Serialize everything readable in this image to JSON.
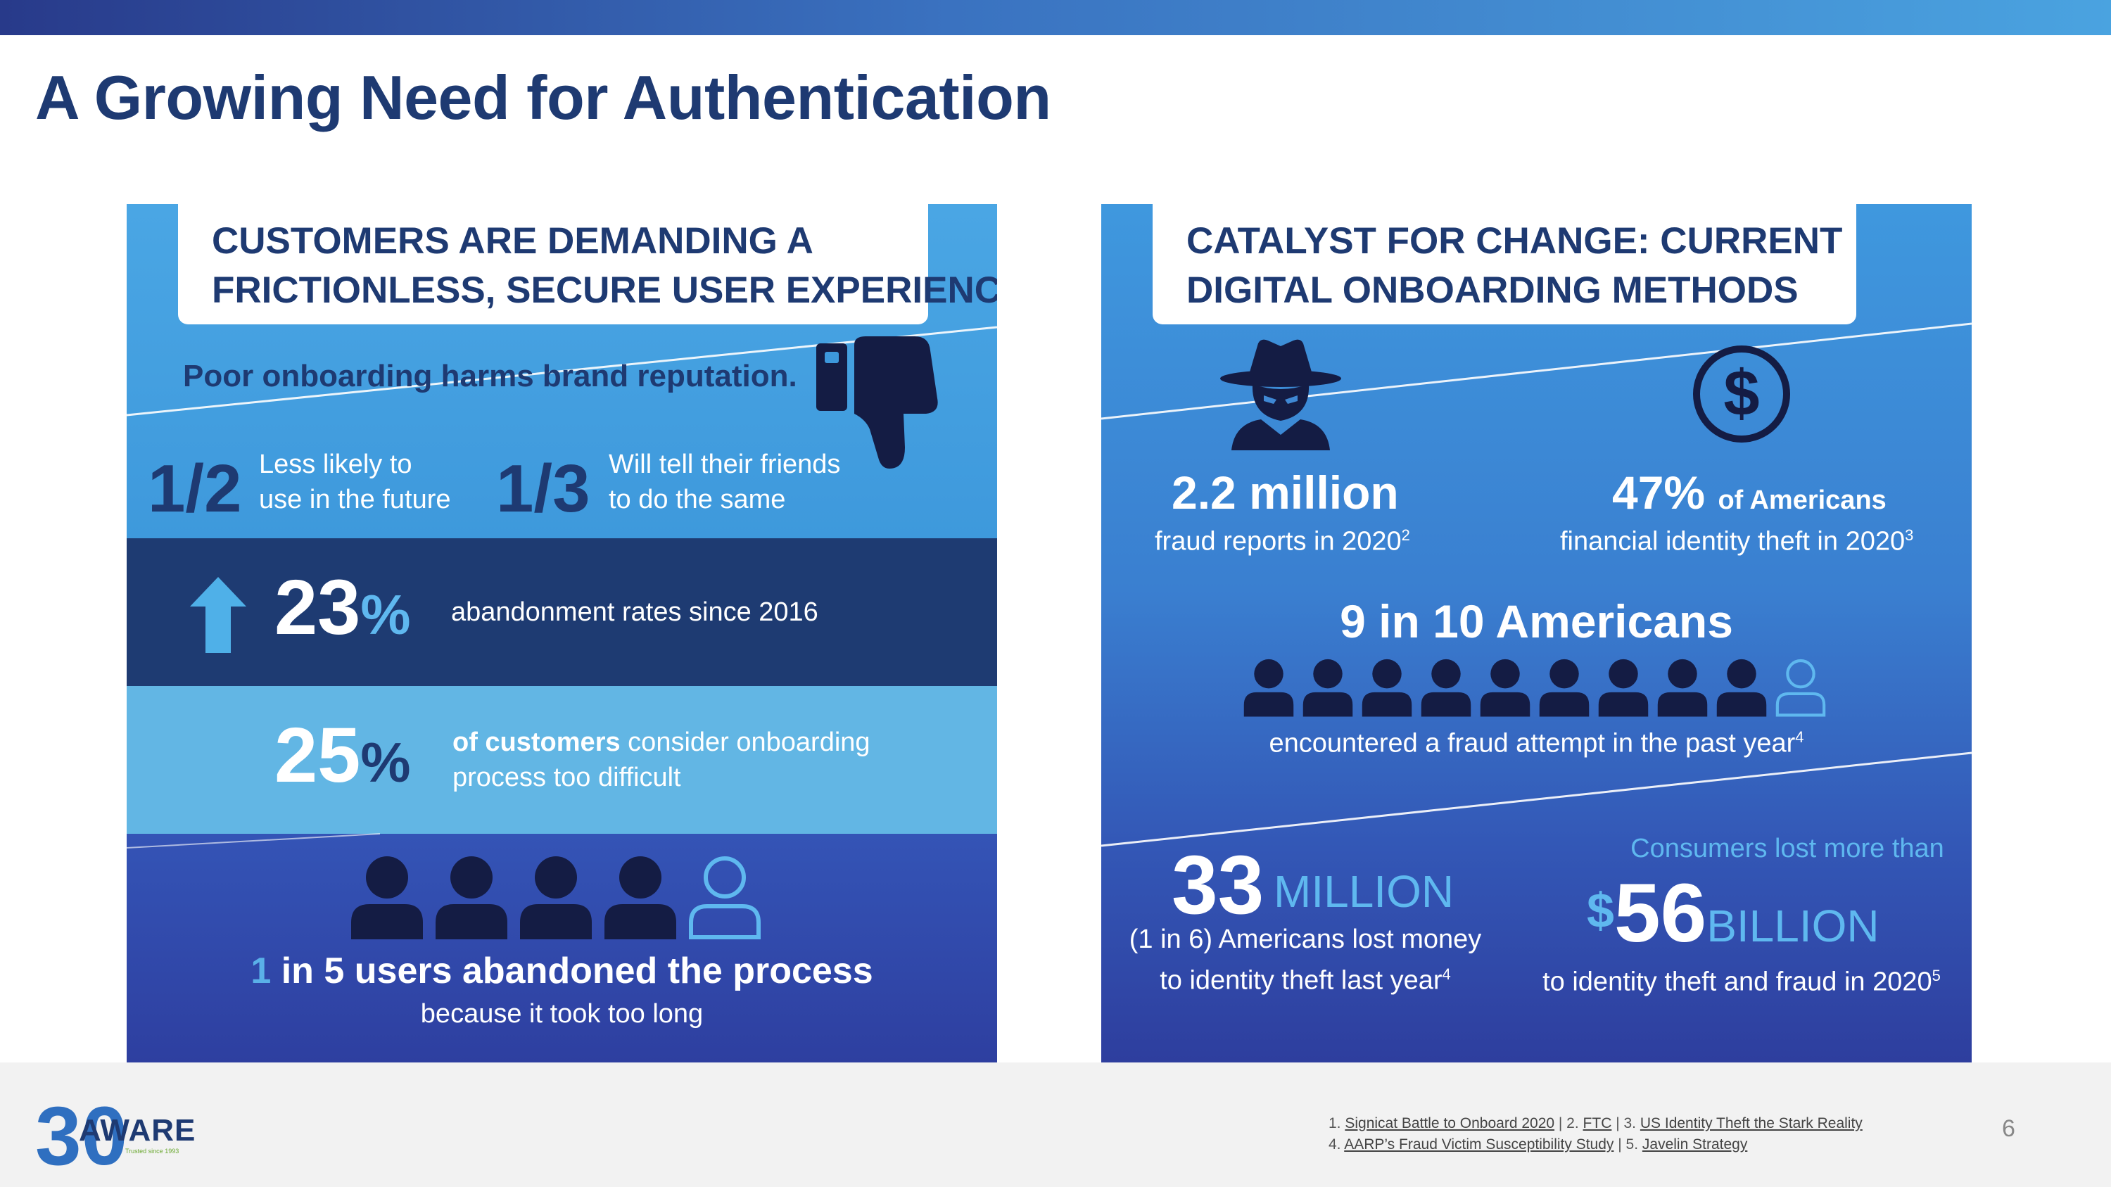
{
  "page_title": "A Growing Need for Authentication",
  "left_panel": {
    "header_line1": "CUSTOMERS ARE DEMANDING A",
    "header_line2": "FRICTIONLESS, SECURE USER EXPERIENCE",
    "poor_onboarding": "Poor onboarding harms brand reputation.",
    "stat_half": {
      "value": "1/2",
      "line1": "Less likely to",
      "line2": "use in the future"
    },
    "stat_third": {
      "value": "1/3",
      "line1": "Will tell their friends",
      "line2": "to do the same"
    },
    "abandonment": {
      "value": "23",
      "unit": "%",
      "text": "abandonment rates since 2016"
    },
    "difficult": {
      "value": "25",
      "unit": "%",
      "bold": "of customers",
      "text1_rest": " consider onboarding",
      "text2": "process too difficult"
    },
    "users": {
      "highlight": "1",
      "rest": " in 5 users abandoned the process",
      "sub": "because it took too long"
    }
  },
  "right_panel": {
    "header_line1": "CATALYST FOR CHANGE: CURRENT",
    "header_line2": "DIGITAL ONBOARDING METHODS",
    "fraud_reports": {
      "value": "2.2 million",
      "text": "fraud reports in 2020",
      "ref": "2"
    },
    "identity_theft": {
      "value": "47%",
      "small": "of Americans",
      "text": "financial identity theft in 2020",
      "ref": "3"
    },
    "nine_in_ten": {
      "title": "9 in 10 Americans",
      "text": "encountered a fraud attempt in the past year",
      "ref": "4"
    },
    "million": {
      "value": "33",
      "word": "MILLION",
      "line1": "(1 in 6) Americans lost money",
      "line2": "to identity theft last year",
      "ref": "4"
    },
    "billion": {
      "lead": "Consumers lost more than",
      "currency": "$",
      "value": "56",
      "word": "BILLION",
      "text": "to identity theft and fraud in 2020",
      "ref": "5"
    }
  },
  "footer": {
    "logo_text": "AWARE",
    "logo_number": "30",
    "logo_tagline": "Trusted since 1993",
    "refs_line1": [
      {
        "prefix": "1. ",
        "link": "Signicat Battle to Onboard 2020"
      },
      {
        "prefix": "  |  2. ",
        "link": "FTC"
      },
      {
        "prefix": "  |  3. ",
        "link": "US Identity Theft the Stark Reality"
      }
    ],
    "refs_line2": [
      {
        "prefix": "4. ",
        "link": "AARP’s Fraud Victim Susceptibility Study"
      },
      {
        "prefix": "  |  5. ",
        "link": "Javelin Strategy"
      }
    ],
    "page_number": "6"
  },
  "colors": {
    "navy": "#1e3a72",
    "accent_light": "#5fb8ef",
    "panel_blue": "#3d98dc",
    "person_dark": "#141c44"
  },
  "people_left": {
    "filled": 4,
    "outline": 1
  },
  "people_right": {
    "filled": 9,
    "outline": 1
  }
}
